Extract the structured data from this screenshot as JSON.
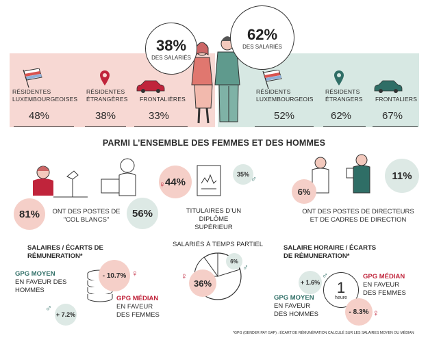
{
  "top": {
    "women_pct": "38%",
    "women_label": "DES SALARIÉS",
    "men_pct": "62%",
    "men_label": "DES SALARIÉS",
    "women": [
      {
        "label": "RÉSIDENTES LUXEMBOURGEOISES",
        "value": "48%"
      },
      {
        "label": "RÉSIDENTES ÉTRANGÈRES",
        "value": "38%"
      },
      {
        "label": "FRONTALIÈRES",
        "value": "33%"
      }
    ],
    "men": [
      {
        "label": "RÉSIDENTS LUXEMBOURGEOIS",
        "value": "52%"
      },
      {
        "label": "RÉSIDENTS ÉTRANGERS",
        "value": "62%"
      },
      {
        "label": "FRONTALIERS",
        "value": "67%"
      }
    ]
  },
  "section_title": "PARMI L’ENSEMBLE DES FEMMES ET DES HOMMES",
  "white_collar": {
    "women": "81%",
    "label": "ONT DES POSTES DE \"COL BLANCS\"",
    "men": "56%"
  },
  "diploma": {
    "women": "44%",
    "men": "35%",
    "label": "TITULAIRES D’UN DIPLÔME SUPÉRIEUR"
  },
  "directors": {
    "women": "6%",
    "men": "11%",
    "label": "ONT DES POSTES DE DIRECTEURS ET DE CADRES DE DIRECTION"
  },
  "salary": {
    "title": "SALAIRES / ÉCARTS DE RÉMUNERATION*",
    "gpg_moyen_label": "GPG MOYEN",
    "gpg_moyen_sub": "EN FAVEUR DES HOMMES",
    "gpg_moyen_value": "+ 7.2%",
    "gpg_median_label": "GPG MÉDIAN",
    "gpg_median_sub": "EN FAVEUR DES FEMMES",
    "gpg_median_value": "- 10.7%"
  },
  "part_time": {
    "title": "SALARIÉS À TEMPS PARTIEL",
    "women": "36%",
    "men": "6%"
  },
  "hourly": {
    "title": "SALAIRE HORAIRE / ÉCARTS DE RÉMUNERATION*",
    "gpg_moyen_label": "GPG MOYEN",
    "gpg_moyen_sub": "EN FAVEUR DES HOMMES",
    "gpg_moyen_value": "+ 1.6%",
    "gpg_median_label": "GPG MÉDIAN",
    "gpg_median_sub": "EN FAVEUR DES FEMMES",
    "gpg_median_value": "- 8.3%",
    "clock_number": "1",
    "clock_unit": "heure"
  },
  "footnote": "*GPG (Gender Pay Gap) : écart de rémunération calculé sur les salaires moyen ou médian",
  "colors": {
    "pink": "#f5cfc8",
    "green": "#dde9e5",
    "teal": "#2f6e66",
    "red": "#c0243b"
  },
  "icons": [
    "flag-icon",
    "location-pin-icon",
    "car-icon",
    "woman-icon",
    "man-icon",
    "female-symbol-icon",
    "male-symbol-icon",
    "coins-icon",
    "clock-icon",
    "pie-icon",
    "diploma-icon",
    "computer-icon"
  ]
}
